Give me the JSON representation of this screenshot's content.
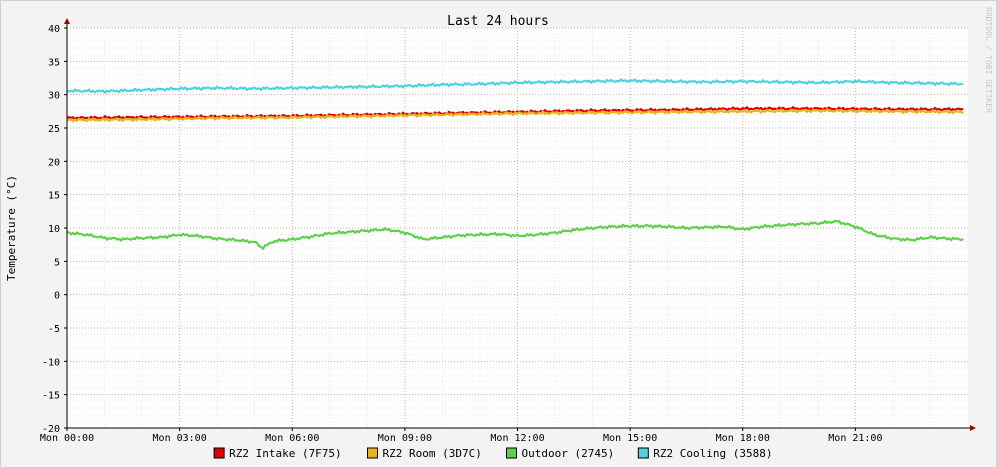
{
  "chart_data": {
    "type": "line",
    "title": "Last 24 hours",
    "ylabel": "Temperature (°C)",
    "watermark": "RRDTOOL / TOBI OETIKER",
    "ylim": [
      -20,
      40
    ],
    "y_ticks": [
      40,
      35,
      30,
      25,
      20,
      15,
      10,
      5,
      0,
      -5,
      -10,
      -15,
      -20
    ],
    "x_range_hours": [
      0,
      24
    ],
    "x_ticks": [
      {
        "hour": 0,
        "label": "Mon 00:00"
      },
      {
        "hour": 3,
        "label": "Mon 03:00"
      },
      {
        "hour": 6,
        "label": "Mon 06:00"
      },
      {
        "hour": 9,
        "label": "Mon 09:00"
      },
      {
        "hour": 12,
        "label": "Mon 12:00"
      },
      {
        "hour": 15,
        "label": "Mon 15:00"
      },
      {
        "hour": 18,
        "label": "Mon 18:00"
      },
      {
        "hour": 21,
        "label": "Mon 21:00"
      }
    ],
    "grid": true,
    "legend_position": "bottom-center",
    "series": [
      {
        "name": "RZ2 Intake (7F75)",
        "color": "#e00000",
        "points": [
          [
            0,
            26.5
          ],
          [
            2,
            26.6
          ],
          [
            4,
            26.7
          ],
          [
            6,
            26.8
          ],
          [
            8,
            27.0
          ],
          [
            10,
            27.2
          ],
          [
            12,
            27.4
          ],
          [
            14,
            27.6
          ],
          [
            16,
            27.7
          ],
          [
            18,
            27.9
          ],
          [
            20,
            27.9
          ],
          [
            22,
            27.8
          ],
          [
            23.9,
            27.8
          ]
        ]
      },
      {
        "name": "RZ2 Room (3D7C)",
        "color": "#e8b41a",
        "points": [
          [
            0,
            26.2
          ],
          [
            2,
            26.3
          ],
          [
            4,
            26.5
          ],
          [
            6,
            26.6
          ],
          [
            8,
            26.8
          ],
          [
            10,
            27.0
          ],
          [
            12,
            27.2
          ],
          [
            14,
            27.3
          ],
          [
            16,
            27.4
          ],
          [
            18,
            27.5
          ],
          [
            20,
            27.6
          ],
          [
            22,
            27.5
          ],
          [
            23.9,
            27.4
          ]
        ]
      },
      {
        "name": "Outdoor (2745)",
        "color": "#5ed14a",
        "points": [
          [
            0,
            9.3
          ],
          [
            0.5,
            9.0
          ],
          [
            1,
            8.5
          ],
          [
            1.5,
            8.3
          ],
          [
            2,
            8.5
          ],
          [
            2.5,
            8.6
          ],
          [
            3,
            9.0
          ],
          [
            3.5,
            8.8
          ],
          [
            4,
            8.4
          ],
          [
            4.5,
            8.2
          ],
          [
            5,
            7.9
          ],
          [
            5.2,
            7.0
          ],
          [
            5.5,
            8.0
          ],
          [
            6,
            8.3
          ],
          [
            6.5,
            8.7
          ],
          [
            7,
            9.2
          ],
          [
            7.5,
            9.4
          ],
          [
            8,
            9.6
          ],
          [
            8.5,
            9.8
          ],
          [
            9,
            9.3
          ],
          [
            9.5,
            8.3
          ],
          [
            10,
            8.6
          ],
          [
            10.5,
            8.9
          ],
          [
            11,
            9.0
          ],
          [
            11.5,
            9.1
          ],
          [
            12,
            8.8
          ],
          [
            12.5,
            9.0
          ],
          [
            13,
            9.3
          ],
          [
            13.5,
            9.7
          ],
          [
            14,
            10.0
          ],
          [
            14.5,
            10.2
          ],
          [
            15,
            10.3
          ],
          [
            15.5,
            10.3
          ],
          [
            16,
            10.2
          ],
          [
            16.5,
            10.0
          ],
          [
            17,
            10.1
          ],
          [
            17.5,
            10.2
          ],
          [
            18,
            9.8
          ],
          [
            18.5,
            10.2
          ],
          [
            19,
            10.4
          ],
          [
            19.5,
            10.6
          ],
          [
            20,
            10.7
          ],
          [
            20.5,
            11.0
          ],
          [
            21,
            10.2
          ],
          [
            21.5,
            9.0
          ],
          [
            22,
            8.4
          ],
          [
            22.5,
            8.2
          ],
          [
            23,
            8.6
          ],
          [
            23.5,
            8.4
          ],
          [
            23.9,
            8.3
          ]
        ]
      },
      {
        "name": "RZ2 Cooling (3588)",
        "color": "#4dd3de",
        "points": [
          [
            0,
            30.6
          ],
          [
            1,
            30.5
          ],
          [
            2,
            30.7
          ],
          [
            3,
            30.9
          ],
          [
            4,
            31.0
          ],
          [
            5,
            30.9
          ],
          [
            6,
            31.0
          ],
          [
            7,
            31.1
          ],
          [
            8,
            31.2
          ],
          [
            9,
            31.3
          ],
          [
            10,
            31.5
          ],
          [
            11,
            31.6
          ],
          [
            12,
            31.8
          ],
          [
            13,
            31.9
          ],
          [
            14,
            32.0
          ],
          [
            15,
            32.1
          ],
          [
            16,
            32.0
          ],
          [
            17,
            31.9
          ],
          [
            18,
            32.0
          ],
          [
            19,
            31.9
          ],
          [
            20,
            31.8
          ],
          [
            21,
            32.0
          ],
          [
            22,
            31.8
          ],
          [
            23,
            31.7
          ],
          [
            23.9,
            31.6
          ]
        ]
      }
    ]
  }
}
